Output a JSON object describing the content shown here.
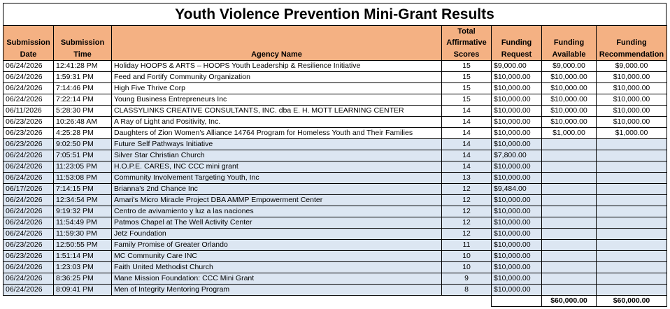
{
  "title": "Youth Violence Prevention Mini-Grant Results",
  "columns": [
    "Submission Date",
    "Submission Time",
    "Agency Name",
    "Total Affirmative Scores",
    "Funding Request",
    "Funding Available",
    "Funding Recommendation"
  ],
  "rows": [
    [
      "06/24/2026",
      "12:41:28 PM",
      "Holiday HOOPS & ARTS – HOOPS Youth Leadership & Resilience Initiative",
      "15",
      "$9,000.00",
      "$9,000.00",
      "$9,000.00"
    ],
    [
      "06/24/2026",
      "1:59:31 PM",
      "Feed and Fortify Community Organization",
      "15",
      "$10,000.00",
      "$10,000.00",
      "$10,000.00"
    ],
    [
      "06/24/2026",
      "7:14:46 PM",
      "High Five Thrive Corp",
      "15",
      "$10,000.00",
      "$10,000.00",
      "$10,000.00"
    ],
    [
      "06/24/2026",
      "7:22:14 PM",
      "Young Business Entrepreneurs Inc",
      "15",
      "$10,000.00",
      "$10,000.00",
      "$10,000.00"
    ],
    [
      "06/11/2026",
      "5:28:30 PM",
      "CLASSYLINKS CREATIVE CONSULTANTS, INC. dba E. H. MOTT LEARNING CENTER",
      "14",
      "$10,000.00",
      "$10,000.00",
      "$10,000.00"
    ],
    [
      "06/23/2026",
      "10:26:48 AM",
      "A Ray of Light and Positivity, Inc.",
      "14",
      "$10,000.00",
      "$10,000.00",
      "$10,000.00"
    ],
    [
      "06/23/2026",
      "4:25:28 PM",
      "Daughters of Zion Women's Alliance 14764 Program for Homeless Youth and Their Families",
      "14",
      "$10,000.00",
      "$1,000.00",
      "$1,000.00"
    ],
    [
      "06/23/2026",
      "9:02:50 PM",
      "Future Self Pathways Initiative",
      "14",
      "$10,000.00",
      "",
      ""
    ],
    [
      "06/24/2026",
      "7:05:51 PM",
      "Silver Star Christian Church",
      "14",
      "$7,800.00",
      "",
      ""
    ],
    [
      "06/24/2026",
      "11:23:05 PM",
      "H.O.P.E. CARES, INC CCC mini grant",
      "14",
      "$10,000.00",
      "",
      ""
    ],
    [
      "06/24/2026",
      "11:53:08 PM",
      "Community Involvement Targeting Youth, Inc",
      "13",
      "$10,000.00",
      "",
      ""
    ],
    [
      "06/17/2026",
      "7:14:15 PM",
      "Brianna's 2nd Chance Inc",
      "12",
      "$9,484.00",
      "",
      ""
    ],
    [
      "06/24/2026",
      "12:34:54 PM",
      "Amari's Micro Miracle Project DBA AMMP Empowerment Center",
      "12",
      "$10,000.00",
      "",
      ""
    ],
    [
      "06/24/2026",
      "9:19:32 PM",
      "Centro de avivamiento y luz a las naciones",
      "12",
      "$10,000.00",
      "",
      ""
    ],
    [
      "06/24/2026",
      "11:54:49 PM",
      "Patmos Chapel at The Well Activity Center",
      "12",
      "$10,000.00",
      "",
      ""
    ],
    [
      "06/24/2026",
      "11:59:30 PM",
      "Jetz Foundation",
      "12",
      "$10,000.00",
      "",
      ""
    ],
    [
      "06/23/2026",
      "12:50:55 PM",
      "Family Promise of Greater Orlando",
      "11",
      "$10,000.00",
      "",
      ""
    ],
    [
      "06/23/2026",
      "1:51:14 PM",
      "MC Community Care INC",
      "10",
      "$10,000.00",
      "",
      ""
    ],
    [
      "06/24/2026",
      "1:23:03 PM",
      "Faith United Methodist Church",
      "10",
      "$10,000.00",
      "",
      ""
    ],
    [
      "06/24/2026",
      "8:36:25 PM",
      "Mane Mission Foundation: CCC Mini Grant",
      "9",
      "$10,000.00",
      "",
      ""
    ],
    [
      "06/24/2026",
      "8:09:41 PM",
      "Men of Integrity Mentoring Program",
      "8",
      "$10,000.00",
      "",
      ""
    ]
  ],
  "funded_count": 7,
  "totals": {
    "funding_available": "$60,000.00",
    "funding_recommendation": "$60,000.00"
  },
  "colors": {
    "header_bg": "#f4b183",
    "unfunded_row_bg": "#dce6f2",
    "funded_row_bg": "#ffffff"
  }
}
